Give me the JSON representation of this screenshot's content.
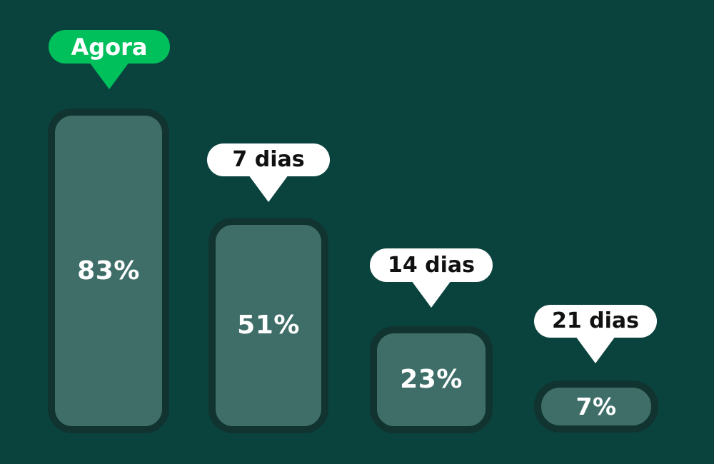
{
  "chart_data": {
    "type": "bar",
    "orientation": "vertical",
    "categories": [
      "Agora",
      "7 dias",
      "14 dias",
      "21 dias"
    ],
    "values": [
      83,
      51,
      23,
      7
    ],
    "value_labels": [
      "83%",
      "51%",
      "23%",
      "7%"
    ],
    "unit": "%",
    "title": "",
    "xlabel": "",
    "ylabel": "",
    "ylim": [
      0,
      100
    ],
    "grid": false,
    "legend": false,
    "highlight_category": "Agora",
    "colors": {
      "background": "#0A433E",
      "bar_fill": "#3F6E69",
      "bar_border": "#113430",
      "value_text": "#FFFFFF",
      "highlight_bubble": "#00C05C",
      "highlight_bubble_text": "#FFFFFF",
      "bubble": "#FFFFFF",
      "bubble_text": "#111111"
    }
  }
}
